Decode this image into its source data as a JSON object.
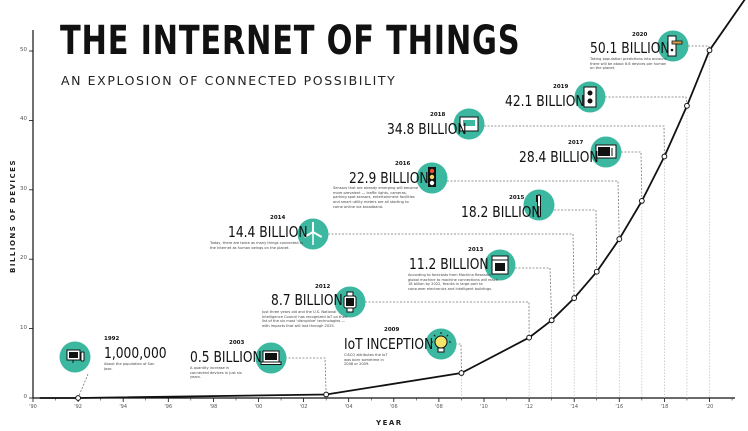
{
  "header": {
    "title": "THE INTERNET OF THINGS",
    "subtitle": "AN EXPLOSION OF CONNECTED POSSIBILITY"
  },
  "colors": {
    "accent": "#3cb8a0",
    "line": "#111111",
    "grid": "#bbbbbb"
  },
  "milestones": [
    {
      "year": "1992",
      "value": "1,000,000",
      "icon": "desktop-computer-icon",
      "desc": "About the population of San Jose."
    },
    {
      "year": "2003",
      "value": "0.5 BILLION",
      "icon": "laptop-icon",
      "desc": "A quantity increase in connected devices in just six years."
    },
    {
      "year": "2009",
      "value": "IoT INCEPTION",
      "icon": "light-bulb-icon",
      "desc": "CISCO attributes the IoT was born sometime in 2008 or 2009."
    },
    {
      "year": "2012",
      "value": "8.7 BILLION",
      "icon": "smartwatch-icon",
      "desc": "Just three years old and the U.S. National Intelligence Council has recognized IoT on their list of the six most 'disruptive' technologies — with impacts that will last through 2025."
    },
    {
      "year": "2013",
      "value": "11.2 BILLION",
      "icon": "oven-icon",
      "desc": "According to forecasts from Machina Research, global machine to machine connections will reach 18 billion by 2022, thanks in large part to consumer electronics and intelligent buildings."
    },
    {
      "year": "2014",
      "value": "14.4 BILLION",
      "icon": "wind-turbine-icon",
      "desc": "Today, there are twice as many things connected to the Internet as human beings on the planet."
    },
    {
      "year": "2015",
      "value": "18.2 BILLION",
      "icon": "toothbrush-icon",
      "desc": ""
    },
    {
      "year": "2016",
      "value": "22.9 BILLION",
      "icon": "traffic-light-icon",
      "desc": "Sensors that are already emerging will become more prevalent — traffic lights, cameras, parking spot sensors, entertainment facilities and smart utility meters are all starting to come online via broadband."
    },
    {
      "year": "2017",
      "value": "28.4 BILLION",
      "icon": "microwave-icon",
      "desc": ""
    },
    {
      "year": "2018",
      "value": "34.8 BILLION",
      "icon": "thermostat-icon",
      "desc": ""
    },
    {
      "year": "2019",
      "value": "42.1 BILLION",
      "icon": "power-outlet-icon",
      "desc": ""
    },
    {
      "year": "2020",
      "value": "50.1 BILLION",
      "icon": "door-handle-icon",
      "desc": "Taking population predictions into account, there will be about 6.6 devices per human on the planet."
    }
  ],
  "chart_data": {
    "type": "line",
    "title": "THE INTERNET OF THINGS",
    "subtitle": "AN EXPLOSION OF CONNECTED POSSIBILITY",
    "xlabel": "YEAR",
    "ylabel": "BILLIONS OF DEVICES",
    "xlim": [
      1990,
      2021
    ],
    "ylim": [
      0,
      55
    ],
    "x_ticks": [
      "'90",
      "'92",
      "'94",
      "'96",
      "'98",
      "'00",
      "'02",
      "'04",
      "'06",
      "'08",
      "'10",
      "'12",
      "'14",
      "'16",
      "'18",
      "'20"
    ],
    "y_ticks": [
      "0",
      "10",
      "20",
      "30",
      "40",
      "50"
    ],
    "grid": "dotted vertical guides at data points",
    "series": [
      {
        "x": [
          1992,
          2003,
          2009,
          2012,
          2013,
          2014,
          2015,
          2016,
          2017,
          2018,
          2019,
          2020
        ],
        "values": [
          0.001,
          0.5,
          3.6,
          8.7,
          11.2,
          14.4,
          18.2,
          22.9,
          28.4,
          34.8,
          42.1,
          50.1
        ]
      }
    ]
  }
}
